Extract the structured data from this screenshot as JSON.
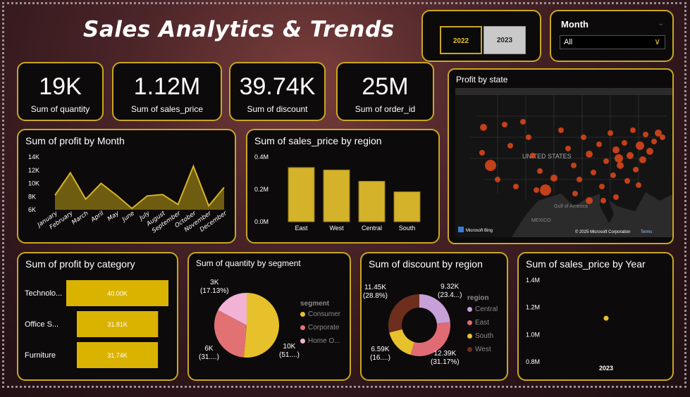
{
  "header": {
    "title": "Sales Analytics & Trends"
  },
  "year_slicer": {
    "options": [
      "2022",
      "2023"
    ],
    "selected": "2022"
  },
  "month_slicer": {
    "label": "Month",
    "value": "All"
  },
  "kpis": [
    {
      "value": "19K",
      "label": "Sum of quantity"
    },
    {
      "value": "1.12M",
      "label": "Sum of sales_price"
    },
    {
      "value": "39.74K",
      "label": "Sum of discount"
    },
    {
      "value": "25M",
      "label": "Sum of order_id"
    }
  ],
  "map": {
    "title": "Profit by state",
    "country_label": "UNITED STATES",
    "gulf_label": "Gulf of America",
    "mexico_label": "MEXICO",
    "bing": "Microsoft Bing",
    "copyright": "© 2025 Microsoft Corporation",
    "terms": "Terms"
  },
  "colors": {
    "accent": "#c9a722",
    "bar": "#d4b22a",
    "dark_bar": "#dab300",
    "consumer": "#e6c12c",
    "corporate": "#e27174",
    "home_office": "#f2b2d6",
    "central": "#c8a0d8",
    "east": "#e06b74",
    "south": "#e6c12c",
    "west": "#6e2e1e"
  },
  "chart_data": [
    {
      "type": "area",
      "title": "Sum of profit by Month",
      "categories": [
        "January",
        "February",
        "March",
        "April",
        "May",
        "June",
        "July",
        "August",
        "September",
        "October",
        "November",
        "December"
      ],
      "values": [
        8.2,
        11.6,
        7.6,
        10.0,
        8.2,
        6.2,
        8.1,
        8.3,
        6.8,
        12.6,
        6.6,
        9.4
      ],
      "yticks": [
        "14K",
        "12K",
        "10K",
        "8K",
        "6K"
      ],
      "ylim": [
        6,
        14
      ]
    },
    {
      "type": "bar",
      "title": "Sum of sales_price by region",
      "categories": [
        "East",
        "West",
        "Central",
        "South"
      ],
      "values": [
        0.335,
        0.32,
        0.25,
        0.185
      ],
      "yticks": [
        "0.4M",
        "0.2M",
        "0.0M"
      ],
      "ylim": [
        0,
        0.4
      ]
    },
    {
      "type": "bar",
      "orientation": "horizontal",
      "title": "Sum of profit by category",
      "categories": [
        "Technolo...",
        "Office S...",
        "Furniture"
      ],
      "values": [
        40.0,
        31.81,
        31.74
      ],
      "data_labels": [
        "40.00K",
        "31.81K",
        "31.74K"
      ]
    },
    {
      "type": "pie",
      "title": "Sum of quantity by segment",
      "legend_title": "segment",
      "legend": [
        "Consumer",
        "Corporate",
        "Home O..."
      ],
      "values": [
        51,
        31,
        17.13
      ],
      "data_labels": [
        {
          "value": "10K",
          "pct": "(51....)"
        },
        {
          "value": "6K",
          "pct": "(31....)"
        },
        {
          "value": "3K",
          "pct": "(17.13%)"
        }
      ]
    },
    {
      "type": "pie",
      "donut": true,
      "title": "Sum of discount by region",
      "legend_title": "region",
      "legend": [
        "Central",
        "East",
        "South",
        "West"
      ],
      "values": [
        23.4,
        31.17,
        16.6,
        28.8
      ],
      "data_labels": [
        {
          "value": "9.32K",
          "pct": "(23.4...)"
        },
        {
          "value": "12.39K",
          "pct": "(31.17%)"
        },
        {
          "value": "6.59K",
          "pct": "(16....)"
        },
        {
          "value": "11.45K",
          "pct": "(28.8%)"
        }
      ]
    },
    {
      "type": "scatter",
      "title": "Sum of sales_price by Year",
      "x": [
        "2023"
      ],
      "values": [
        1.12
      ],
      "yticks": [
        "1.4M",
        "1.2M",
        "1.0M",
        "0.8M"
      ],
      "ylim": [
        0.8,
        1.4
      ]
    }
  ]
}
